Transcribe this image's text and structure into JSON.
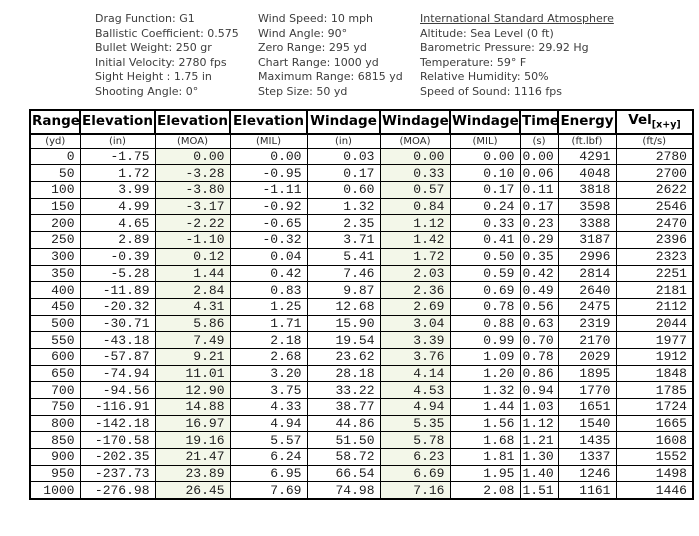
{
  "info_columns": [
    {
      "lines": [
        "Drag Function: G1",
        "Ballistic Coefficient: 0.575",
        "Bullet Weight: 250 gr",
        "Initial Velocity: 2780 fps",
        "Sight Height : 1.75 in",
        "Shooting Angle: 0°"
      ]
    },
    {
      "lines": [
        "Wind Speed: 10 mph",
        "Wind Angle: 90°",
        "Zero Range: 295 yd",
        "Chart Range: 1000 yd",
        "Maximum Range: 6815 yd",
        "Step Size: 50 yd"
      ]
    },
    {
      "title": "International Standard Atmosphere",
      "lines": [
        "Altitude: Sea Level (0 ft)",
        "Barometric Pressure: 29.92 Hg",
        "Temperature: 59° F",
        "Relative Humidity: 50%",
        "Speed of Sound: 1116 fps"
      ]
    }
  ],
  "chart_data": {
    "type": "table",
    "title": "Ballistic trajectory table",
    "legend_position": "none",
    "grid": "full-borders",
    "tinted_columns": [
      2,
      5
    ],
    "columns": [
      {
        "label": "Range",
        "unit": "(yd)"
      },
      {
        "label": "Elevation",
        "unit": "(in)"
      },
      {
        "label": "Elevation",
        "unit": "(MOA)"
      },
      {
        "label": "Elevation",
        "unit": "(MIL)"
      },
      {
        "label": "Windage",
        "unit": "(in)"
      },
      {
        "label": "Windage",
        "unit": "(MOA)"
      },
      {
        "label": "Windage",
        "unit": "(MIL)"
      },
      {
        "label": "Time",
        "unit": "(s)"
      },
      {
        "label": "Energy",
        "unit": "(ft.lbf)"
      },
      {
        "label": "Vel",
        "sub": "[x+y]",
        "unit": "(ft/s)"
      }
    ],
    "rows": [
      [
        "0",
        "-1.75",
        "0.00",
        "0.00",
        "0.03",
        "0.00",
        "0.00",
        "0.00",
        "4291",
        "2780"
      ],
      [
        "50",
        "1.72",
        "-3.28",
        "-0.95",
        "0.17",
        "0.33",
        "0.10",
        "0.06",
        "4048",
        "2700"
      ],
      [
        "100",
        "3.99",
        "-3.80",
        "-1.11",
        "0.60",
        "0.57",
        "0.17",
        "0.11",
        "3818",
        "2622"
      ],
      [
        "150",
        "4.99",
        "-3.17",
        "-0.92",
        "1.32",
        "0.84",
        "0.24",
        "0.17",
        "3598",
        "2546"
      ],
      [
        "200",
        "4.65",
        "-2.22",
        "-0.65",
        "2.35",
        "1.12",
        "0.33",
        "0.23",
        "3388",
        "2470"
      ],
      [
        "250",
        "2.89",
        "-1.10",
        "-0.32",
        "3.71",
        "1.42",
        "0.41",
        "0.29",
        "3187",
        "2396"
      ],
      [
        "300",
        "-0.39",
        "0.12",
        "0.04",
        "5.41",
        "1.72",
        "0.50",
        "0.35",
        "2996",
        "2323"
      ],
      [
        "350",
        "-5.28",
        "1.44",
        "0.42",
        "7.46",
        "2.03",
        "0.59",
        "0.42",
        "2814",
        "2251"
      ],
      [
        "400",
        "-11.89",
        "2.84",
        "0.83",
        "9.87",
        "2.36",
        "0.69",
        "0.49",
        "2640",
        "2181"
      ],
      [
        "450",
        "-20.32",
        "4.31",
        "1.25",
        "12.68",
        "2.69",
        "0.78",
        "0.56",
        "2475",
        "2112"
      ],
      [
        "500",
        "-30.71",
        "5.86",
        "1.71",
        "15.90",
        "3.04",
        "0.88",
        "0.63",
        "2319",
        "2044"
      ],
      [
        "550",
        "-43.18",
        "7.49",
        "2.18",
        "19.54",
        "3.39",
        "0.99",
        "0.70",
        "2170",
        "1977"
      ],
      [
        "600",
        "-57.87",
        "9.21",
        "2.68",
        "23.62",
        "3.76",
        "1.09",
        "0.78",
        "2029",
        "1912"
      ],
      [
        "650",
        "-74.94",
        "11.01",
        "3.20",
        "28.18",
        "4.14",
        "1.20",
        "0.86",
        "1895",
        "1848"
      ],
      [
        "700",
        "-94.56",
        "12.90",
        "3.75",
        "33.22",
        "4.53",
        "1.32",
        "0.94",
        "1770",
        "1785"
      ],
      [
        "750",
        "-116.91",
        "14.88",
        "4.33",
        "38.77",
        "4.94",
        "1.44",
        "1.03",
        "1651",
        "1724"
      ],
      [
        "800",
        "-142.18",
        "16.97",
        "4.94",
        "44.86",
        "5.35",
        "1.56",
        "1.12",
        "1540",
        "1665"
      ],
      [
        "850",
        "-170.58",
        "19.16",
        "5.57",
        "51.50",
        "5.78",
        "1.68",
        "1.21",
        "1435",
        "1608"
      ],
      [
        "900",
        "-202.35",
        "21.47",
        "6.24",
        "58.72",
        "6.23",
        "1.81",
        "1.30",
        "1337",
        "1552"
      ],
      [
        "950",
        "-237.73",
        "23.89",
        "6.95",
        "66.54",
        "6.69",
        "1.95",
        "1.40",
        "1246",
        "1498"
      ],
      [
        "1000",
        "-276.98",
        "26.45",
        "7.69",
        "74.98",
        "7.16",
        "2.08",
        "1.51",
        "1161",
        "1446"
      ]
    ]
  },
  "colors": {
    "tint": "#f3f7e9",
    "border": "#000000",
    "table_text": "#1e1e1e",
    "info_text": "#3d3d3d"
  }
}
